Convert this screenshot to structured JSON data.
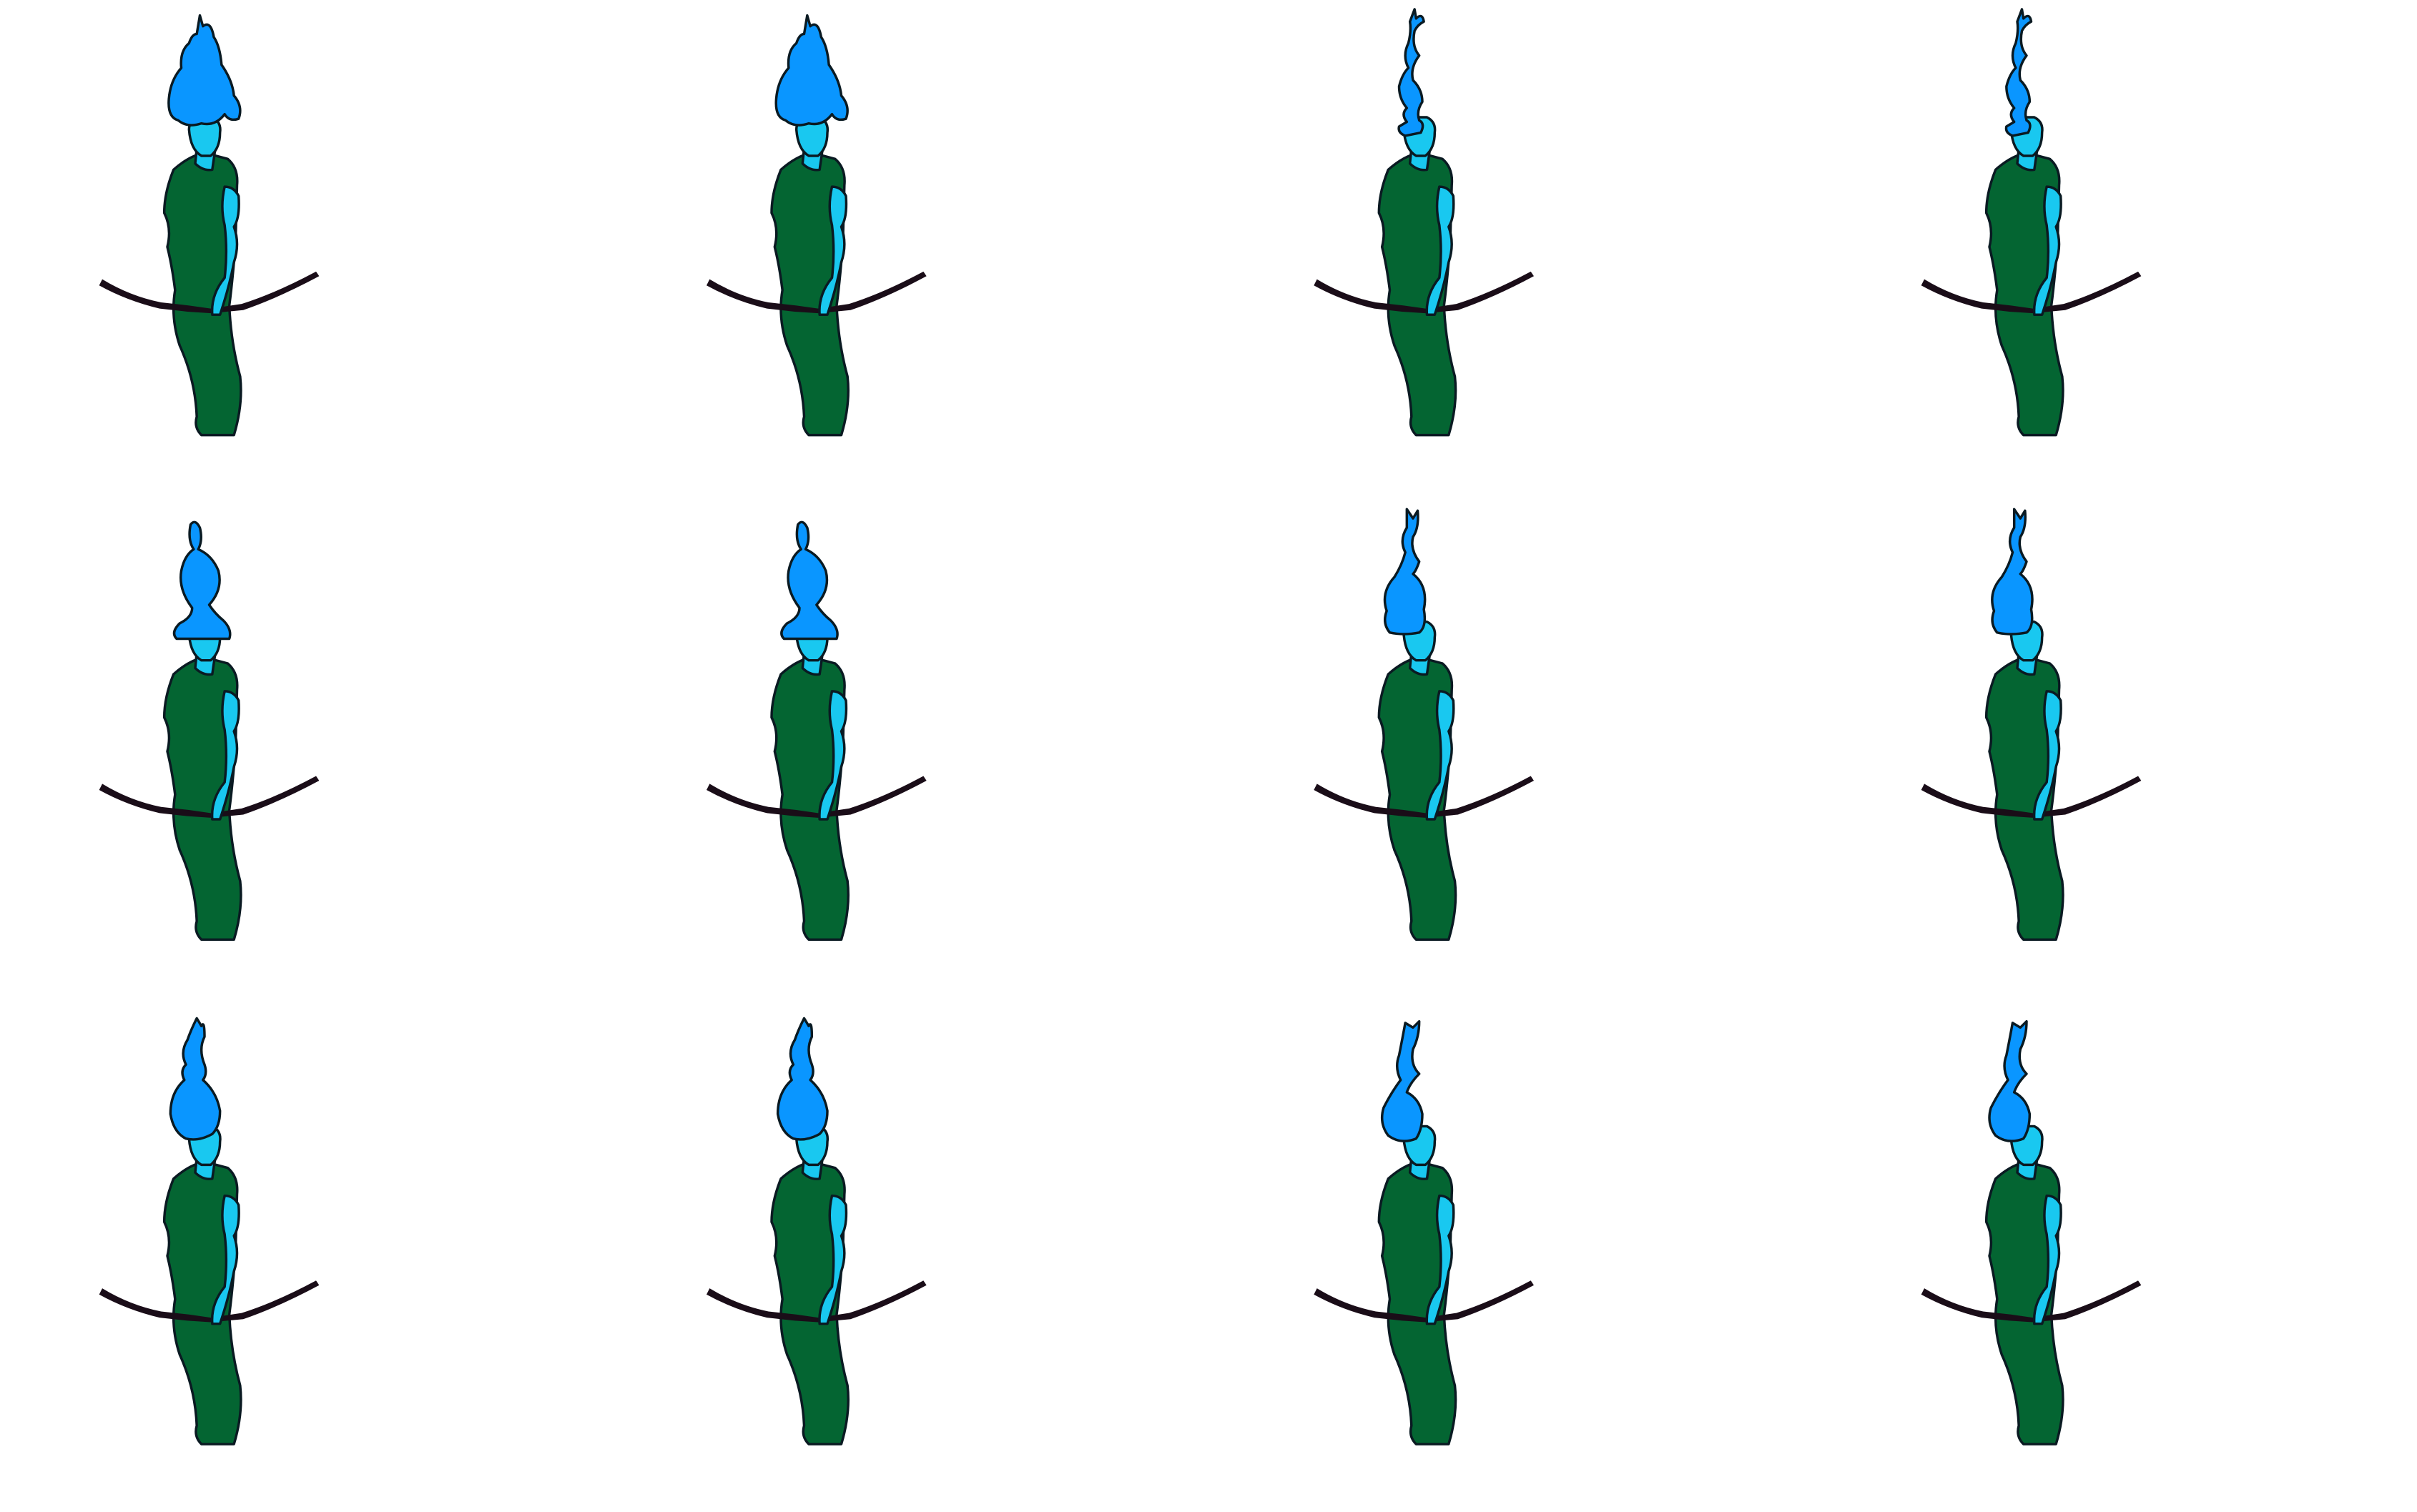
{
  "sprite_sheet": {
    "rows": 3,
    "columns": 4,
    "colors": {
      "background": "#ffffff",
      "hair": "#0a96ff",
      "skin": "#19c8f0",
      "dress": "#046532",
      "bow": "#1a0d18",
      "outline": "#0a1a22"
    },
    "hair_styles": [
      "big-flame",
      "big-flame",
      "thin-flame-bun",
      "thin-flame-bun",
      "small-bun-wide-brim",
      "small-bun-wide-brim",
      "bulb",
      "bulb",
      "bulb-teardrop",
      "bulb-teardrop",
      "bulb-twin-tip",
      "bulb-twin-tip"
    ],
    "prop": "bow"
  }
}
